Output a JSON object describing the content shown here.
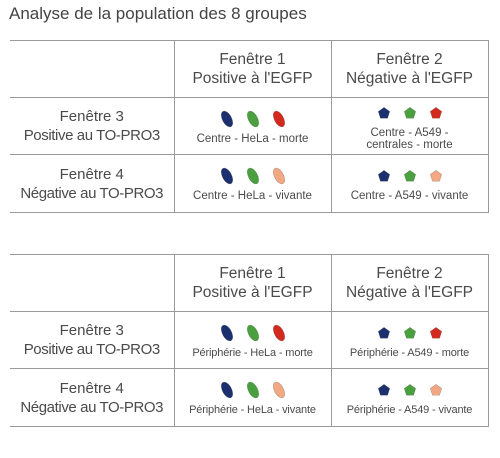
{
  "title": "Analyse de la population des 8 groupes",
  "colors": {
    "blue": "#1c2f6e",
    "green": "#4aa03e",
    "red": "#d22a1e",
    "salmon": "#f2a882",
    "border": "#9a9a9a"
  },
  "tables": [
    {
      "columns": [
        {
          "line1": "Fenêtre 1",
          "line2": "Positive à l'EGFP"
        },
        {
          "line1": "Fenêtre 2",
          "line2": "Négative à l'EGFP"
        }
      ],
      "rows": [
        {
          "line1": "Fenêtre 3",
          "line2": "Positive au TO-PRO3",
          "cells": [
            {
              "shape": "ellipse",
              "colors": [
                "blue",
                "green",
                "red"
              ],
              "caption1": "Centre - HeLa - morte",
              "caption2": ""
            },
            {
              "shape": "pentagon",
              "colors": [
                "blue",
                "green",
                "red"
              ],
              "caption1": "Centre - A549 -",
              "caption2": "centrales - morte"
            }
          ]
        },
        {
          "line1": "Fenêtre 4",
          "line2": "Négative au TO-PRO3",
          "cells": [
            {
              "shape": "ellipse",
              "colors": [
                "blue",
                "green",
                "salmon"
              ],
              "caption1": "Centre - HeLa - vivante",
              "caption2": ""
            },
            {
              "shape": "pentagon",
              "colors": [
                "blue",
                "green",
                "salmon"
              ],
              "caption1": "Centre - A549 - vivante",
              "caption2": ""
            }
          ]
        }
      ]
    },
    {
      "columns": [
        {
          "line1": "Fenêtre 1",
          "line2": "Positive à l'EGFP"
        },
        {
          "line1": "Fenêtre 2",
          "line2": "Négative à l'EGFP"
        }
      ],
      "rows": [
        {
          "line1": "Fenêtre 3",
          "line2": "Positive au TO-PRO3",
          "cells": [
            {
              "shape": "ellipse",
              "colors": [
                "blue",
                "green",
                "red"
              ],
              "caption1": "Périphérie - HeLa - morte",
              "caption2": ""
            },
            {
              "shape": "pentagon",
              "colors": [
                "blue",
                "green",
                "red"
              ],
              "caption1": "Périphérie - A549 - morte",
              "caption2": ""
            }
          ]
        },
        {
          "line1": "Fenêtre 4",
          "line2": "Négative au TO-PRO3",
          "cells": [
            {
              "shape": "ellipse",
              "colors": [
                "blue",
                "green",
                "salmon"
              ],
              "caption1": "Périphérie - HeLa - vivante",
              "caption2": ""
            },
            {
              "shape": "pentagon",
              "colors": [
                "blue",
                "green",
                "salmon"
              ],
              "caption1": "Périphérie - A549 - vivante",
              "caption2": ""
            }
          ]
        }
      ]
    }
  ]
}
